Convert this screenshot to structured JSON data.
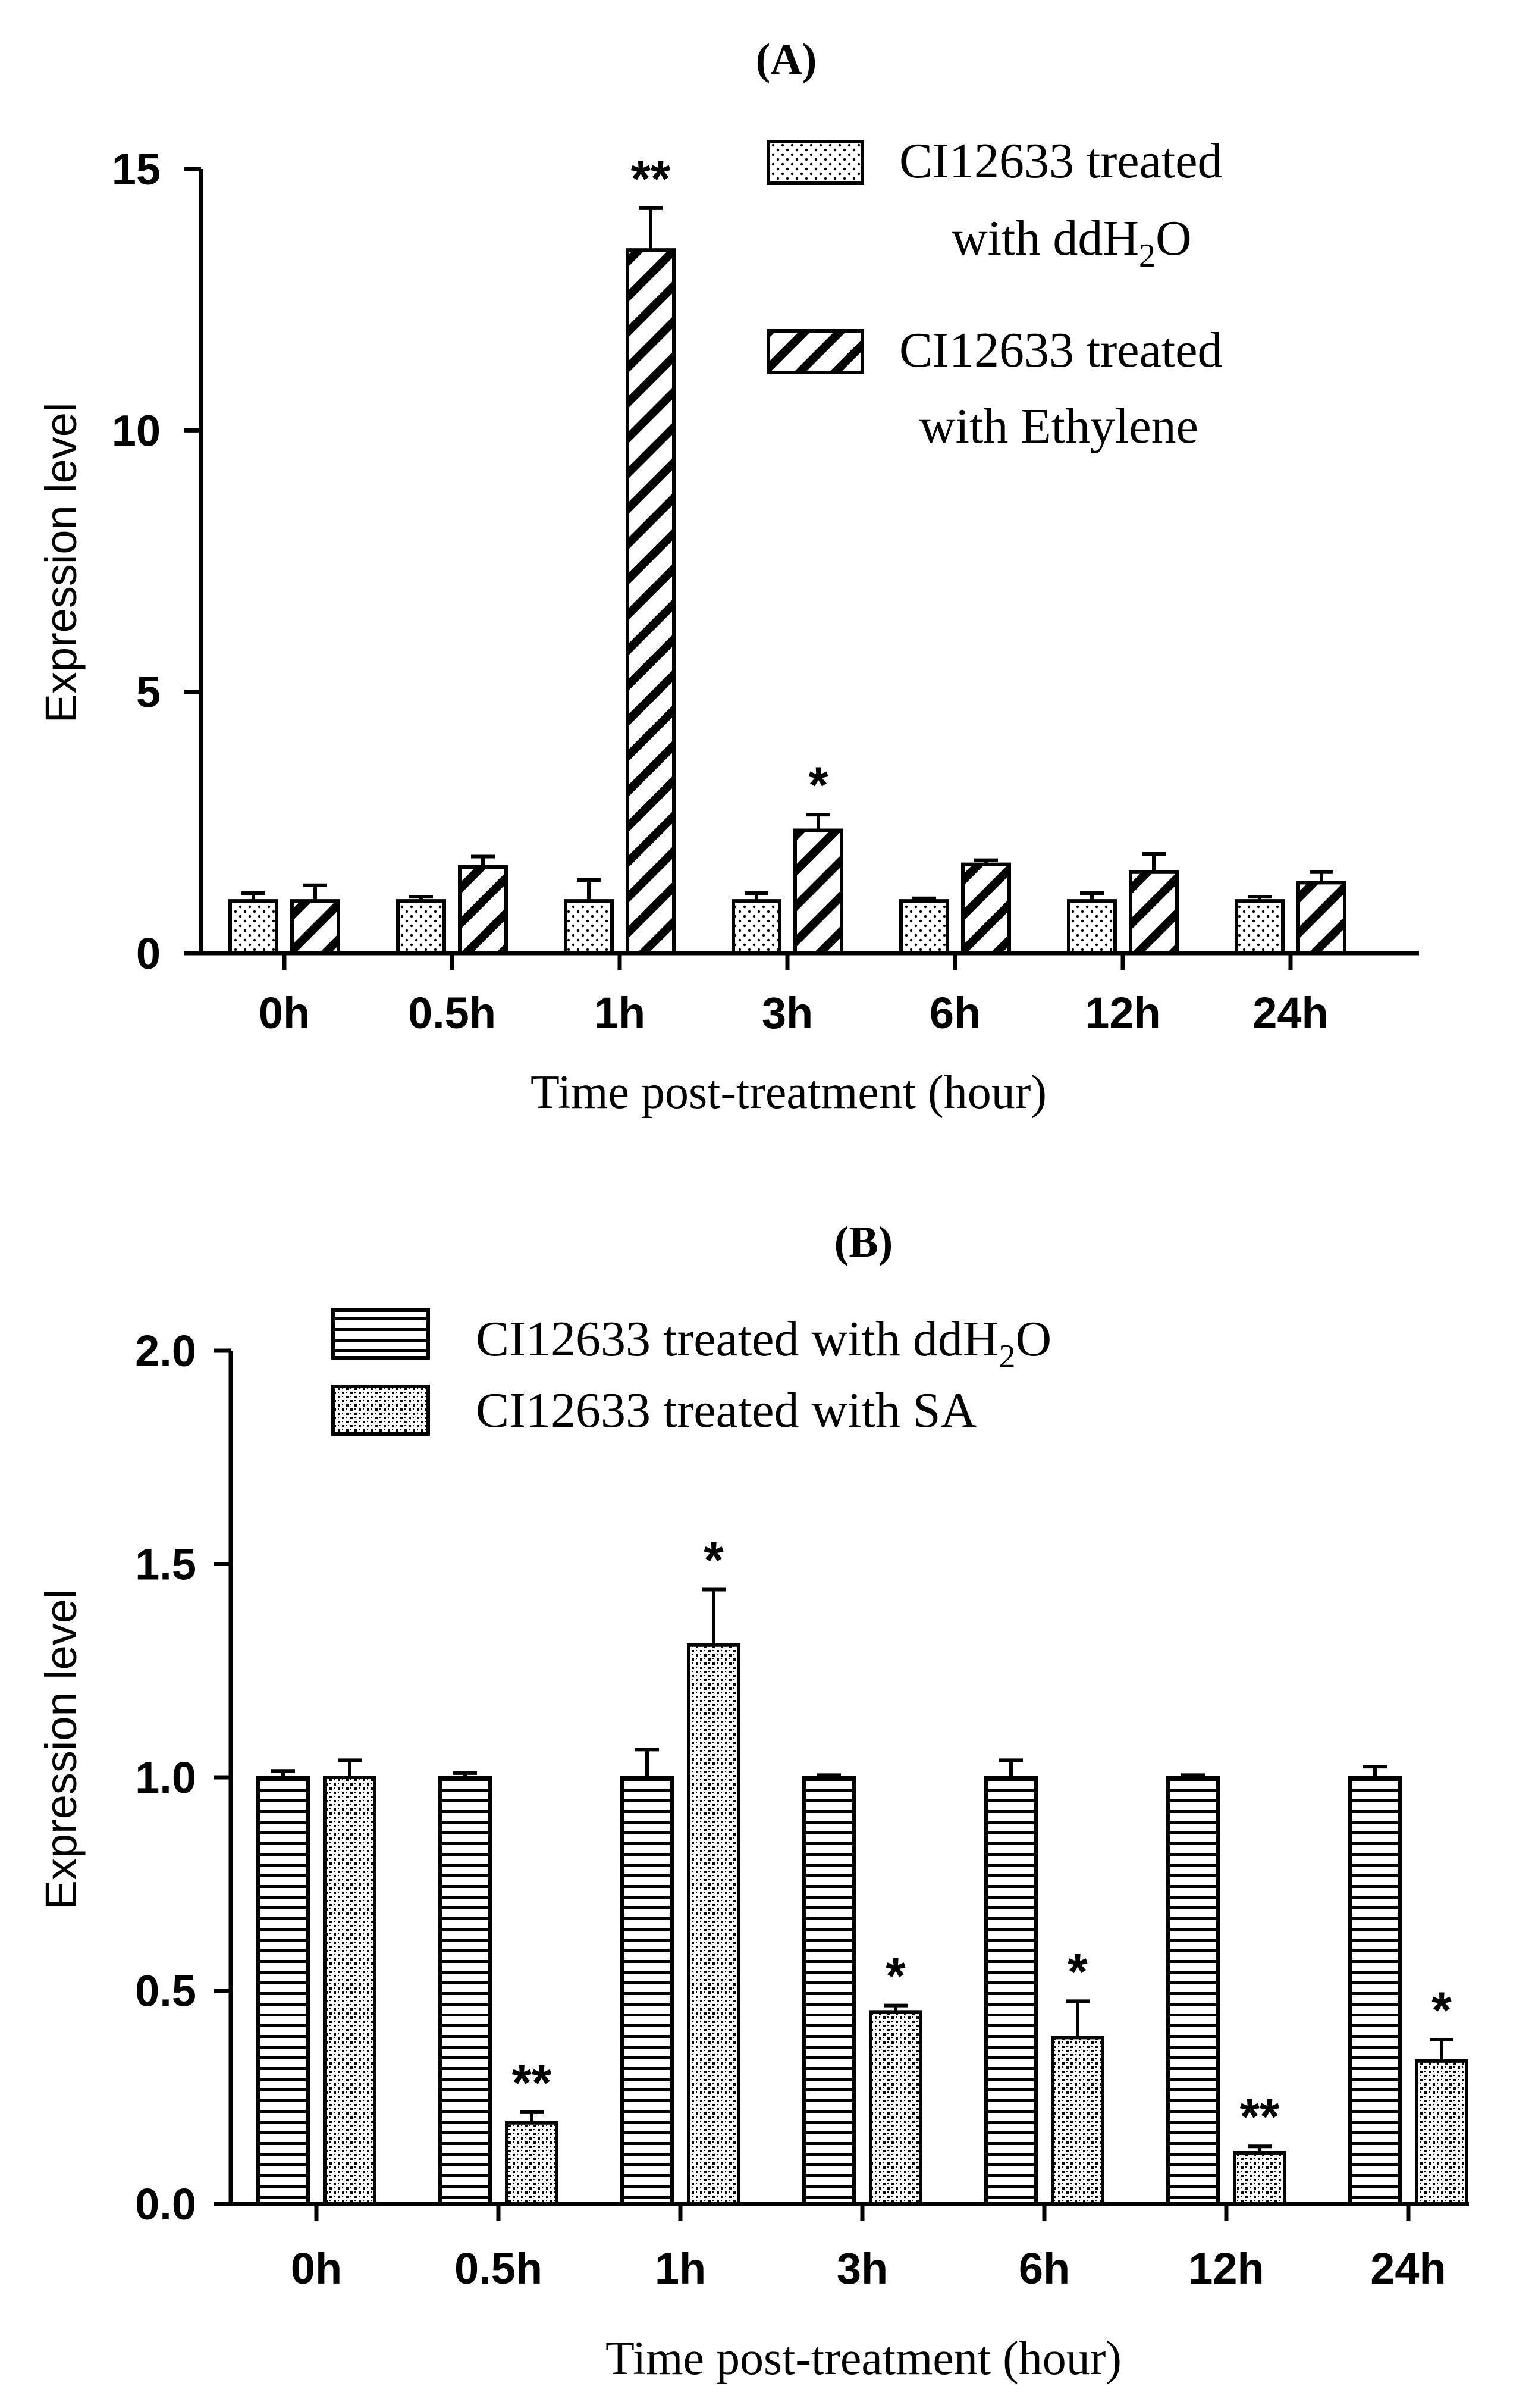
{
  "chart_data": [
    {
      "panel_label": "(A)",
      "type": "bar",
      "categories": [
        "0h",
        "0.5h",
        "1h",
        "3h",
        "6h",
        "12h",
        "24h"
      ],
      "series": [
        {
          "name": "CI12633 treated with ddH2O",
          "legend_line1": "CI12633 treated",
          "legend_line2": "with ddH",
          "legend_sub": "2",
          "legend_tail": "O",
          "pattern": "dots",
          "values": [
            1.0,
            1.0,
            1.0,
            1.0,
            1.0,
            1.0,
            1.0
          ],
          "errors": [
            0.15,
            0.08,
            0.4,
            0.15,
            0.05,
            0.15,
            0.08
          ],
          "significance": [
            "",
            "",
            "",
            "",
            "",
            "",
            ""
          ]
        },
        {
          "name": "CI12633 treated with Ethylene",
          "legend_line1": "CI12633 treated",
          "legend_line2": "with Ethylene",
          "pattern": "diagonal",
          "values": [
            1.0,
            1.65,
            13.45,
            2.35,
            1.7,
            1.55,
            1.35
          ],
          "errors": [
            0.3,
            0.2,
            0.8,
            0.3,
            0.08,
            0.35,
            0.2
          ],
          "significance": [
            "",
            "",
            "**",
            "*",
            "",
            "",
            ""
          ]
        }
      ],
      "ylabel": "Expression level",
      "xlabel": "Time post-treatment (hour)",
      "ylim": [
        0,
        15
      ],
      "yticks": [
        "0",
        "5",
        "10",
        "15"
      ],
      "legend_position": "top-right",
      "grid": false
    },
    {
      "panel_label": "(B)",
      "type": "bar",
      "categories": [
        "0h",
        "0.5h",
        "1h",
        "3h",
        "6h",
        "12h",
        "24h"
      ],
      "series": [
        {
          "name": "CI12633 treated with ddH2O",
          "legend_main": "CI12633 treated with ddH",
          "legend_sub": "2",
          "legend_tail": "O",
          "pattern": "horizontal",
          "values": [
            1.0,
            1.0,
            1.0,
            1.0,
            1.0,
            1.0,
            1.0
          ],
          "errors": [
            0.015,
            0.01,
            0.065,
            0.005,
            0.04,
            0.005,
            0.025
          ],
          "significance": [
            "",
            "",
            "",
            "",
            "",
            "",
            ""
          ]
        },
        {
          "name": "CI12633 treated with SA",
          "legend_main": "CI12633 treated with SA",
          "pattern": "crosshatch-dots",
          "values": [
            1.0,
            0.19,
            1.31,
            0.45,
            0.39,
            0.12,
            0.335
          ],
          "errors": [
            0.04,
            0.025,
            0.13,
            0.015,
            0.085,
            0.015,
            0.05
          ],
          "significance": [
            "",
            "**",
            "*",
            "*",
            "*",
            "**",
            "*"
          ]
        }
      ],
      "ylabel": "Expression level",
      "xlabel": "Time post-treatment (hour)",
      "ylim": [
        0,
        2.0
      ],
      "yticks": [
        "0.0",
        "0.5",
        "1.0",
        "1.5",
        "2.0"
      ],
      "legend_position": "top",
      "grid": false
    }
  ]
}
